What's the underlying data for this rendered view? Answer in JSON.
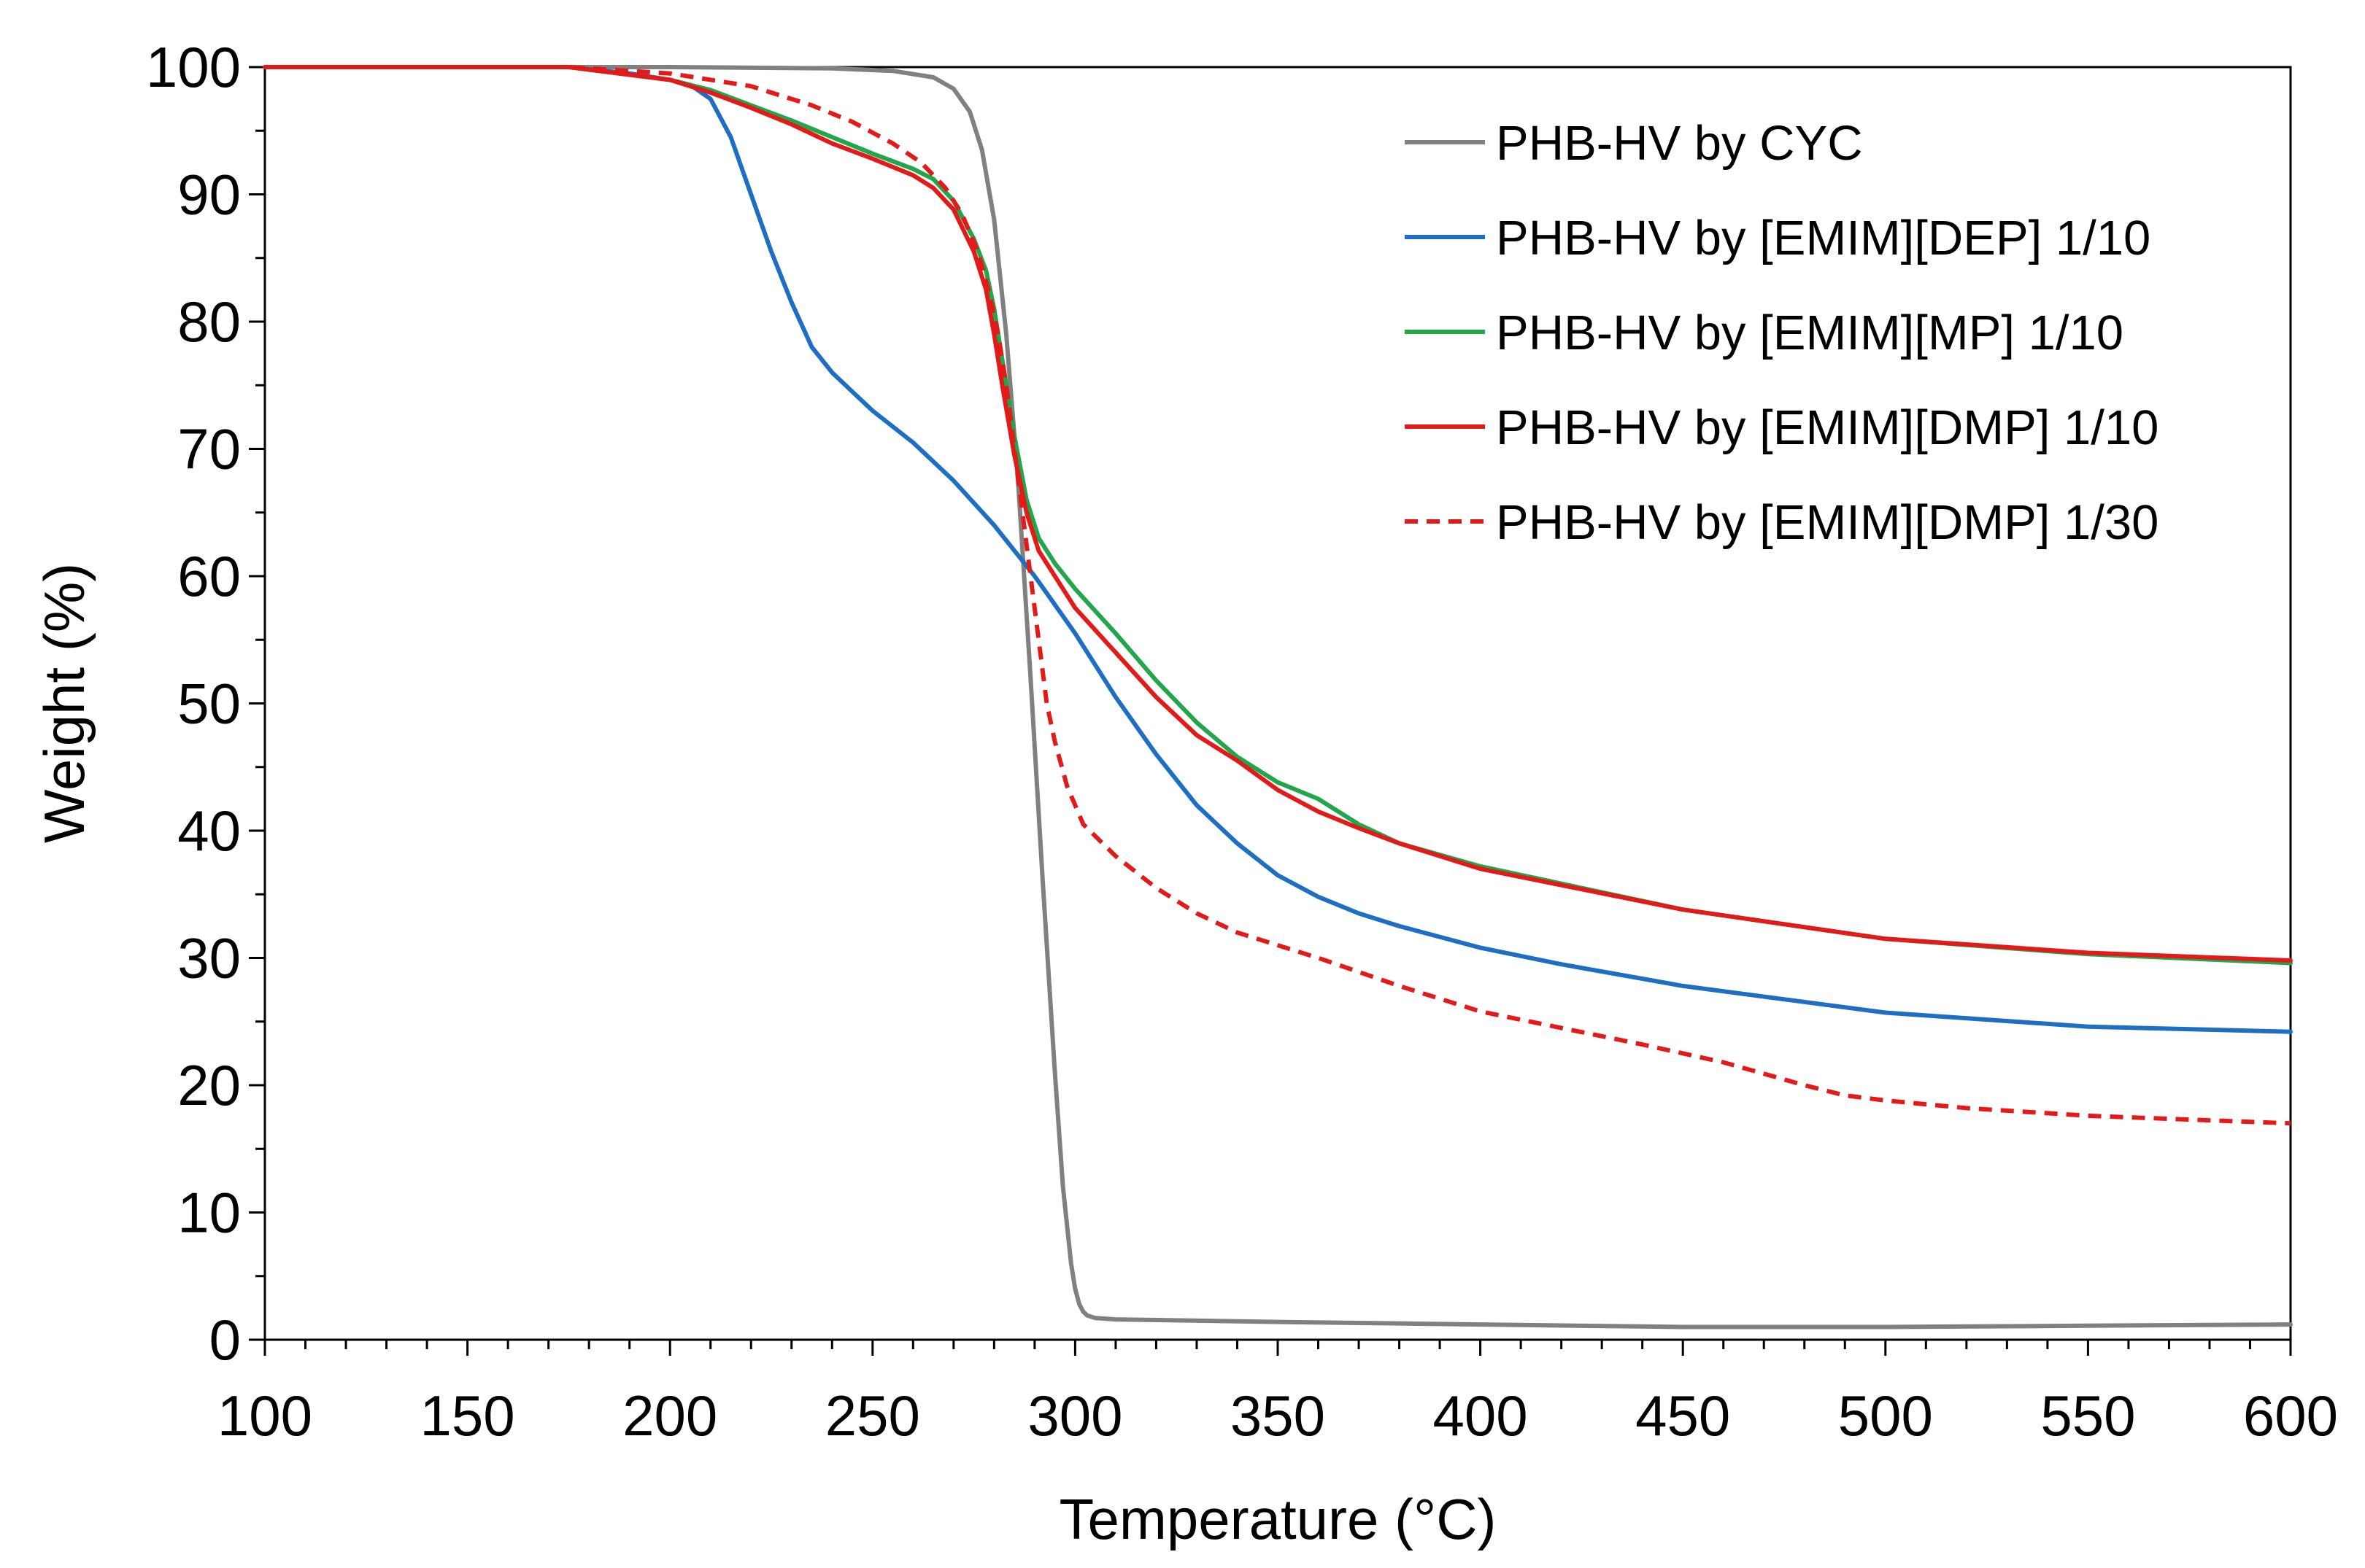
{
  "chart_data": {
    "type": "line",
    "title": "",
    "xlabel": "Temperature (°C)",
    "ylabel": "Weight (%)",
    "xlim": [
      100,
      600
    ],
    "ylim": [
      0,
      100
    ],
    "xticks": [
      "100",
      "150",
      "200",
      "250",
      "300",
      "350",
      "400",
      "450",
      "500",
      "550",
      "600"
    ],
    "yticks": [
      "0",
      "10",
      "20",
      "30",
      "40",
      "50",
      "60",
      "70",
      "80",
      "90",
      "100"
    ],
    "grid": false,
    "legend_position": "top-right",
    "series": [
      {
        "name": "PHB-HV by CYC",
        "color": "#808080",
        "dash": "solid",
        "x": [
          100,
          150,
          200,
          240,
          255,
          265,
          270,
          274,
          277,
          280,
          283,
          286,
          289,
          292,
          295,
          297,
          299,
          300,
          301,
          302,
          303,
          305,
          310,
          350,
          400,
          450,
          500,
          550,
          600
        ],
        "y": [
          100,
          100,
          100,
          99.9,
          99.7,
          99.2,
          98.3,
          96.5,
          93.5,
          88.0,
          79.0,
          67.0,
          52.0,
          36.0,
          21.0,
          12.0,
          6.0,
          4.0,
          2.8,
          2.2,
          1.9,
          1.7,
          1.6,
          1.4,
          1.2,
          1.0,
          1.0,
          1.1,
          1.2
        ]
      },
      {
        "name": "PHB-HV by [EMIM][DEP] 1/10",
        "color": "#1e6fc4",
        "dash": "solid",
        "x": [
          100,
          150,
          175,
          190,
          200,
          205,
          210,
          215,
          220,
          225,
          230,
          235,
          240,
          245,
          250,
          260,
          270,
          280,
          290,
          300,
          310,
          320,
          330,
          340,
          350,
          360,
          370,
          380,
          400,
          420,
          450,
          500,
          550,
          600
        ],
        "y": [
          100,
          100,
          100,
          99.5,
          99.0,
          98.6,
          97.5,
          94.5,
          90.0,
          85.5,
          81.5,
          78.0,
          76.0,
          74.5,
          73.0,
          70.5,
          67.5,
          64.0,
          60.0,
          55.5,
          50.5,
          46.0,
          42.0,
          39.0,
          36.5,
          34.8,
          33.5,
          32.5,
          30.8,
          29.5,
          27.8,
          25.7,
          24.6,
          24.2
        ]
      },
      {
        "name": "PHB-HV by [EMIM][MP] 1/10",
        "color": "#21a64b",
        "dash": "solid",
        "x": [
          100,
          150,
          175,
          200,
          210,
          220,
          230,
          240,
          250,
          260,
          265,
          270,
          275,
          278,
          280,
          282,
          285,
          288,
          291,
          295,
          300,
          310,
          320,
          330,
          340,
          350,
          360,
          370,
          380,
          400,
          450,
          500,
          550,
          600
        ],
        "y": [
          100,
          100,
          100,
          99.0,
          98.2,
          97.0,
          95.8,
          94.5,
          93.2,
          92.0,
          91.2,
          89.5,
          86.5,
          84.0,
          81.0,
          77.0,
          71.0,
          66.0,
          63.0,
          61.0,
          59.0,
          55.5,
          51.8,
          48.5,
          45.8,
          43.8,
          42.5,
          40.5,
          39.0,
          37.2,
          33.8,
          31.5,
          30.3,
          29.6
        ]
      },
      {
        "name": "PHB-HV by [EMIM][DMP] 1/10",
        "color": "#e31a1a",
        "dash": "solid",
        "x": [
          100,
          150,
          175,
          200,
          210,
          220,
          230,
          240,
          250,
          260,
          265,
          270,
          275,
          278,
          280,
          282,
          285,
          288,
          291,
          295,
          300,
          310,
          320,
          330,
          340,
          350,
          360,
          370,
          380,
          400,
          450,
          500,
          550,
          600
        ],
        "y": [
          100,
          100,
          100,
          99.0,
          98.0,
          96.8,
          95.5,
          94.0,
          92.8,
          91.5,
          90.5,
          88.8,
          85.5,
          82.5,
          79.0,
          75.0,
          69.5,
          65.0,
          62.0,
          60.0,
          57.5,
          54.0,
          50.5,
          47.5,
          45.5,
          43.2,
          41.5,
          40.2,
          39.0,
          37.0,
          33.8,
          31.5,
          30.4,
          29.8
        ]
      },
      {
        "name": "PHB-HV by [EMIM][DMP] 1/30",
        "color": "#e31a1a",
        "dash": "dashed",
        "x": [
          100,
          150,
          175,
          200,
          220,
          235,
          245,
          255,
          262,
          268,
          272,
          276,
          279,
          281,
          283,
          285,
          287,
          289,
          291,
          293,
          295,
          298,
          302,
          310,
          320,
          330,
          340,
          360,
          380,
          400,
          420,
          440,
          460,
          480,
          490,
          500,
          520,
          550,
          600
        ],
        "y": [
          100,
          100,
          100,
          99.5,
          98.5,
          97.0,
          95.7,
          94.0,
          92.5,
          90.5,
          88.5,
          85.5,
          82.0,
          79.0,
          75.0,
          70.0,
          65.0,
          60.0,
          55.0,
          50.0,
          47.0,
          43.5,
          40.5,
          38.0,
          35.5,
          33.5,
          32.0,
          30.0,
          27.8,
          25.8,
          24.5,
          23.2,
          21.8,
          20.0,
          19.2,
          18.8,
          18.2,
          17.6,
          17.0
        ]
      }
    ]
  }
}
